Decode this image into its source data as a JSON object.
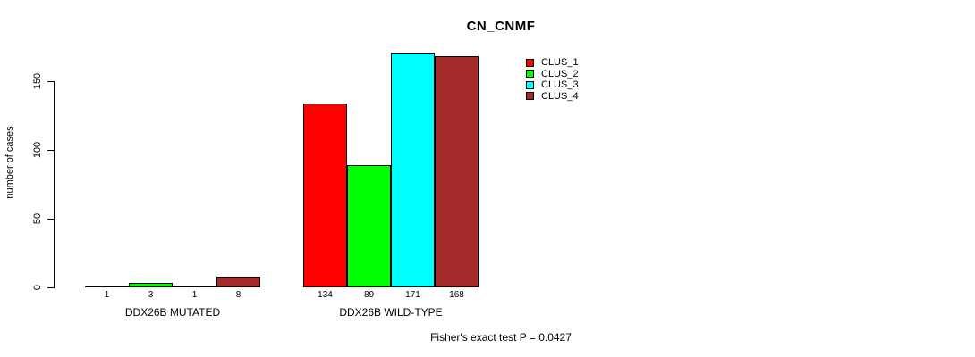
{
  "chart_data": {
    "type": "bar",
    "title": "CN_CNMF",
    "xlabel": "",
    "ylabel": "number of cases",
    "categories": [
      "DDX26B MUTATED",
      "DDX26B WILD-TYPE"
    ],
    "series": [
      {
        "name": "CLUS_1",
        "color": "#FF0000",
        "values": [
          1,
          134
        ]
      },
      {
        "name": "CLUS_2",
        "color": "#00FF00",
        "values": [
          3,
          89
        ]
      },
      {
        "name": "CLUS_3",
        "color": "#00FFFF",
        "values": [
          1,
          171
        ]
      },
      {
        "name": "CLUS_4",
        "color": "#A52A2A",
        "values": [
          8,
          168
        ]
      }
    ],
    "yticks": [
      0,
      50,
      100,
      150
    ],
    "ylim": [
      0,
      175
    ],
    "grid": false,
    "legend_position": "top-right",
    "bar_value_labels_shown": true,
    "annotation": "Fisher's exact test P = 0.0427"
  }
}
